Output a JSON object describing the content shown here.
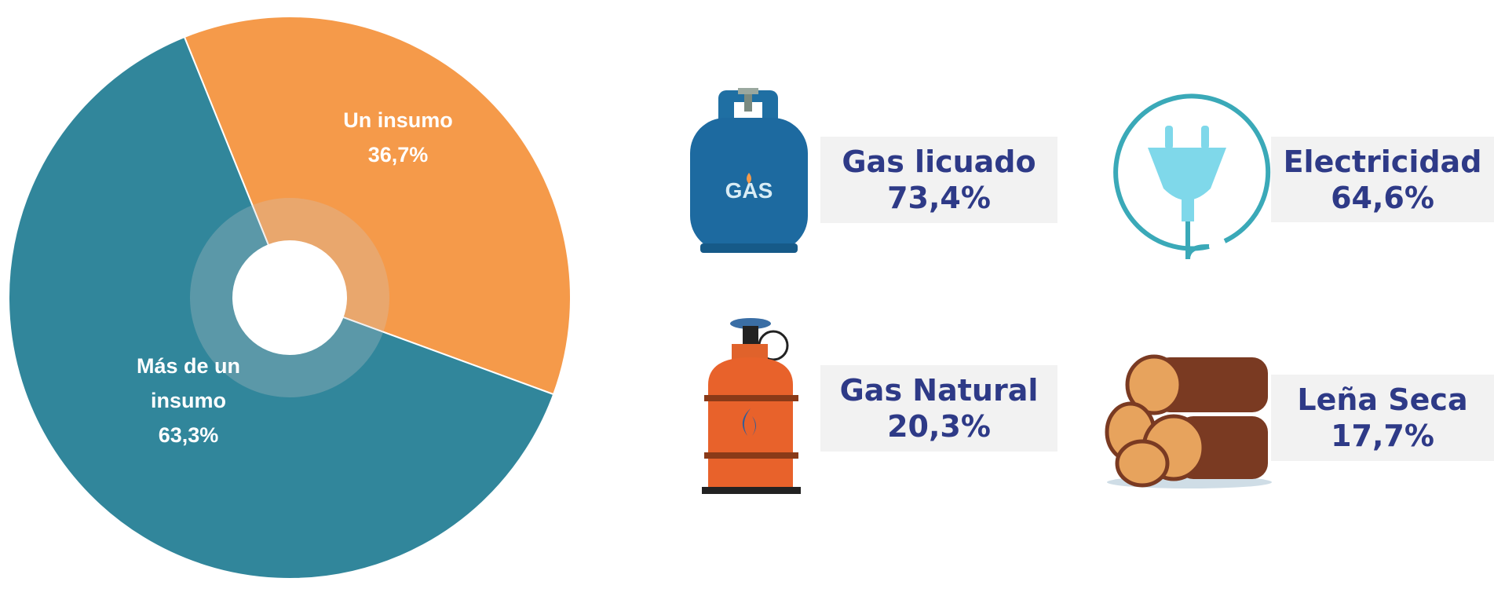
{
  "chart_data": {
    "type": "pie",
    "categories": [
      "Un insumo",
      "Más de un insumo"
    ],
    "values": [
      36.7,
      63.3
    ],
    "value_labels": [
      "36,7%",
      "63,3%"
    ],
    "colors": [
      "#F59A4A",
      "#31869B"
    ]
  },
  "fuels": [
    {
      "label": "Gas licuado",
      "value": "73,4%",
      "icon_text": "GAS"
    },
    {
      "label": "Electricidad",
      "value": "64,6%"
    },
    {
      "label": "Gas Natural",
      "value": "20,3%"
    },
    {
      "label": "Leña Seca",
      "value": "17,7%"
    }
  ]
}
